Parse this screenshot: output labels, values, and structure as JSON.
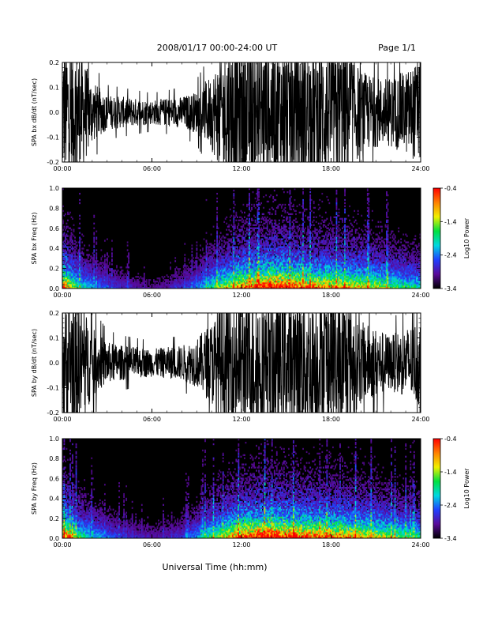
{
  "header": {
    "title": "2008/01/17   00:00-24:00 UT",
    "page": "Page 1/1"
  },
  "xlabel": "Universal Time (hh:mm)",
  "x_ticks": [
    "00:00",
    "06:00",
    "12:00",
    "18:00",
    "24:00"
  ],
  "colorbar": {
    "label": "Log10 Power",
    "ticks": [
      "-0.4",
      "-1.4",
      "-2.4",
      "-3.4"
    ],
    "range": [
      -3.4,
      -0.4
    ],
    "colors": [
      "#000000",
      "#5a0a9a",
      "#2040ff",
      "#00d8e0",
      "#00e040",
      "#f0f000",
      "#ff8000",
      "#ff0000"
    ]
  },
  "chart_data": [
    {
      "type": "line",
      "ylabel": "SPA bx dB/dt (nT/sec)",
      "x_range_hours": [
        0,
        24
      ],
      "ylim": [
        -0.2,
        0.2
      ],
      "y_ticks": [
        "0.2",
        "0.1",
        "0.0",
        "-0.1",
        "-0.2"
      ],
      "series": [
        {
          "x_hours": [
            0,
            1,
            2,
            3,
            4,
            5,
            6,
            7,
            8,
            9,
            10,
            11,
            12,
            13,
            14,
            15,
            16,
            17,
            18,
            19,
            20,
            21,
            22,
            23,
            24
          ],
          "amplitude_envelope": [
            0.2,
            0.2,
            0.09,
            0.05,
            0.045,
            0.04,
            0.035,
            0.04,
            0.045,
            0.06,
            0.11,
            0.2,
            0.2,
            0.2,
            0.2,
            0.2,
            0.2,
            0.2,
            0.2,
            0.2,
            0.12,
            0.1,
            0.1,
            0.12,
            0.15
          ]
        }
      ]
    },
    {
      "type": "heatmap",
      "ylabel": "SPA bx Freq (Hz)",
      "x_range_hours": [
        0,
        24
      ],
      "ylim": [
        0,
        1.0
      ],
      "y_ticks": [
        "1.0",
        "0.8",
        "0.6",
        "0.4",
        "0.2",
        "0.0"
      ],
      "z_label": "Log10 Power",
      "z_range": [
        -3.4,
        -0.4
      ],
      "activity_by_hour": [
        0.9,
        0.5,
        0.35,
        0.25,
        0.2,
        0.15,
        0.12,
        0.15,
        0.2,
        0.3,
        0.5,
        0.65,
        0.85,
        0.9,
        1.0,
        0.95,
        0.85,
        0.8,
        0.8,
        0.75,
        0.7,
        0.65,
        0.55,
        0.5,
        0.45
      ]
    },
    {
      "type": "line",
      "ylabel": "SPA by dB/dt (nT/sec)",
      "x_range_hours": [
        0,
        24
      ],
      "ylim": [
        -0.2,
        0.2
      ],
      "y_ticks": [
        "0.2",
        "0.1",
        "0.0",
        "-0.1",
        "-0.2"
      ],
      "series": [
        {
          "x_hours": [
            0,
            1,
            2,
            3,
            4,
            5,
            6,
            7,
            8,
            9,
            10,
            11,
            12,
            13,
            14,
            15,
            16,
            17,
            18,
            19,
            20,
            21,
            22,
            23,
            24
          ],
          "amplitude_envelope": [
            0.2,
            0.2,
            0.1,
            0.06,
            0.05,
            0.045,
            0.04,
            0.045,
            0.05,
            0.07,
            0.12,
            0.2,
            0.2,
            0.2,
            0.2,
            0.2,
            0.2,
            0.2,
            0.2,
            0.2,
            0.12,
            0.1,
            0.08,
            0.1,
            0.13
          ]
        }
      ]
    },
    {
      "type": "heatmap",
      "ylabel": "SPA by Freq (Hz)",
      "x_range_hours": [
        0,
        24
      ],
      "ylim": [
        0,
        1.0
      ],
      "y_ticks": [
        "1.0",
        "0.8",
        "0.6",
        "0.4",
        "0.2",
        "0.0"
      ],
      "z_label": "Log10 Power",
      "z_range": [
        -3.4,
        -0.4
      ],
      "activity_by_hour": [
        0.95,
        0.55,
        0.4,
        0.3,
        0.22,
        0.18,
        0.15,
        0.18,
        0.22,
        0.35,
        0.55,
        0.7,
        0.9,
        0.95,
        1.0,
        0.95,
        0.9,
        0.85,
        0.85,
        0.8,
        0.75,
        0.7,
        0.6,
        0.55,
        0.5
      ]
    }
  ]
}
